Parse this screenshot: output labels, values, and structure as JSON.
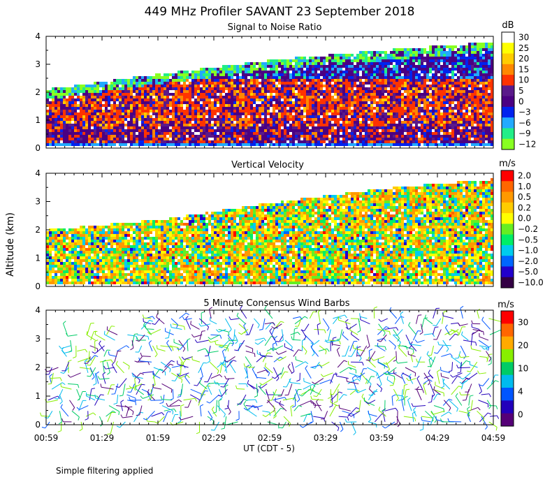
{
  "title": "449 MHz Profiler SAVANT 23 September 2018",
  "ylabel": "Altitude (km)",
  "xlabel": "UT  (CDT - 5)",
  "footnote": "Simple filtering applied",
  "chart_data": [
    {
      "type": "heatmap",
      "title": "Signal to Noise Ratio",
      "unit": "dB",
      "ylim": [
        0,
        4
      ],
      "yticks": [
        "0",
        "1",
        "2",
        "3",
        "4"
      ],
      "x_range": [
        "00:59",
        "04:59"
      ],
      "top_of_data_km": [
        [
          0.0,
          2.05
        ],
        [
          0.25,
          2.6
        ],
        [
          0.5,
          3.1
        ],
        [
          0.75,
          3.45
        ],
        [
          1.0,
          3.75
        ],
        [
          4.0,
          3.75
        ]
      ],
      "colorbar": {
        "labels": [
          "30",
          "25",
          "20",
          "15",
          "10",
          "5",
          "0",
          "−3",
          "−6",
          "−9",
          "−12"
        ],
        "colors": [
          "#ffffff",
          "#ffff00",
          "#ffcc00",
          "#ff8800",
          "#ff3300",
          "#5a1a8a",
          "#4b0082",
          "#0022ee",
          "#22aaff",
          "#22ee88",
          "#88ff22"
        ]
      }
    },
    {
      "type": "heatmap",
      "title": "Vertical Velocity",
      "unit": "m/s",
      "ylim": [
        0,
        4
      ],
      "yticks": [
        "0",
        "1",
        "2",
        "3",
        "4"
      ],
      "x_range": [
        "00:59",
        "04:59"
      ],
      "top_of_data_km": [
        [
          0.0,
          1.95
        ],
        [
          0.25,
          2.3
        ],
        [
          0.5,
          2.9
        ],
        [
          0.75,
          3.4
        ],
        [
          1.0,
          3.75
        ],
        [
          4.0,
          3.75
        ]
      ],
      "colorbar": {
        "labels": [
          "2.0",
          "1.0",
          "0.5",
          "0.2",
          "0.0",
          "−0.2",
          "−0.5",
          "−1.0",
          "−2.0",
          "−5.0",
          "−10.0"
        ],
        "colors": [
          "#ff0000",
          "#ff6600",
          "#ff9900",
          "#ffcc00",
          "#ffff00",
          "#66ee22",
          "#00ee66",
          "#00ccee",
          "#0066ff",
          "#2200cc",
          "#330044"
        ]
      }
    },
    {
      "type": "scatter",
      "title": "5 Minute Consensus Wind Barbs",
      "unit": "m/s",
      "ylim": [
        0,
        4
      ],
      "yticks": [
        "0",
        "1",
        "2",
        "3",
        "4"
      ],
      "x_range": [
        "00:59",
        "04:59"
      ],
      "colorbar": {
        "labels": [
          "30",
          "20",
          "10",
          "4",
          "0"
        ],
        "colors": [
          "#ff0000",
          "#ff6600",
          "#ffaa00",
          "#88ee00",
          "#00cc66",
          "#00bbee",
          "#0055ff",
          "#2200bb",
          "#550077"
        ]
      }
    }
  ],
  "xaxis": {
    "ticks": [
      "00:59",
      "01:29",
      "01:59",
      "02:29",
      "02:59",
      "03:29",
      "03:59",
      "04:29",
      "04:59"
    ]
  }
}
